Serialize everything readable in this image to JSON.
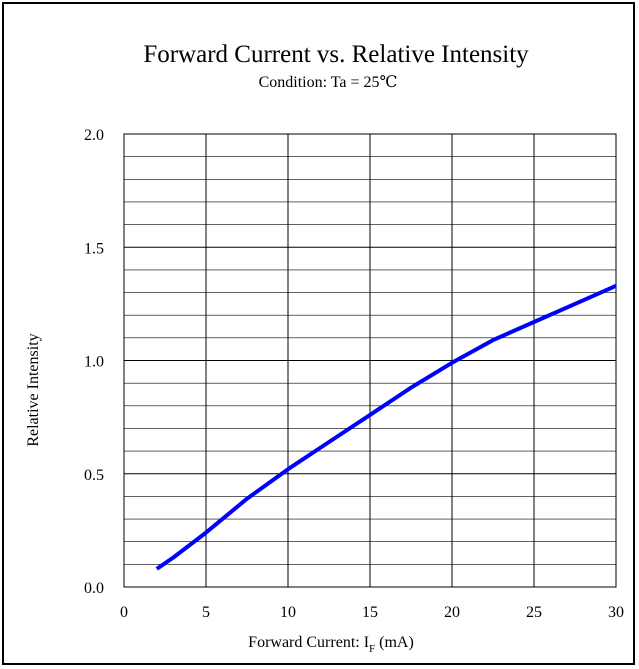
{
  "chart_data": {
    "type": "line",
    "title": "Forward Current vs. Relative Intensity",
    "subtitle": "Condition: Ta = 25℃",
    "xlabel_main": "Forward Current: I",
    "xlabel_sub": "F",
    "xlabel_tail": " (mA)",
    "ylabel": "Relative Intensity",
    "xlim": [
      0,
      30
    ],
    "ylim": [
      0,
      2.0
    ],
    "x_ticks": [
      "0",
      "5",
      "10",
      "15",
      "20",
      "25",
      "30"
    ],
    "y_ticks": [
      "0.0",
      "0.5",
      "1.0",
      "1.5",
      "2.0"
    ],
    "grid": true,
    "series": [
      {
        "color": "#0000ff",
        "x": [
          2,
          3,
          5,
          7.5,
          10,
          12.5,
          15,
          17.5,
          20,
          22.5,
          25,
          27.5,
          30
        ],
        "y": [
          0.08,
          0.13,
          0.24,
          0.39,
          0.52,
          0.64,
          0.76,
          0.88,
          0.99,
          1.09,
          1.17,
          1.25,
          1.33
        ]
      }
    ]
  }
}
